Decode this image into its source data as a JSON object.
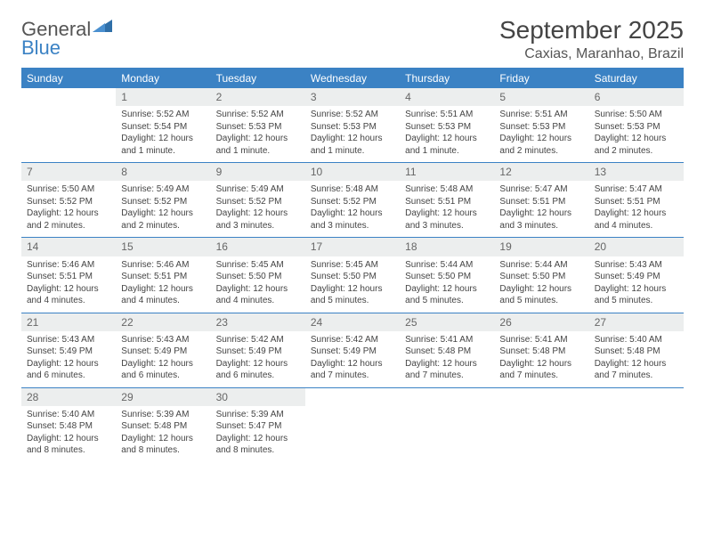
{
  "brand": {
    "word1": "General",
    "word2": "Blue"
  },
  "title": "September 2025",
  "location": "Caxias, Maranhao, Brazil",
  "colors": {
    "header_bg": "#3b82c4",
    "header_text": "#ffffff",
    "daynum_bg": "#eceeee",
    "text": "#444444",
    "rule": "#3b82c4",
    "background": "#ffffff"
  },
  "days_of_week": [
    "Sunday",
    "Monday",
    "Tuesday",
    "Wednesday",
    "Thursday",
    "Friday",
    "Saturday"
  ],
  "start_weekday_index": 1,
  "days": [
    {
      "n": 1,
      "sunrise": "5:52 AM",
      "sunset": "5:54 PM",
      "daylight": "12 hours and 1 minute."
    },
    {
      "n": 2,
      "sunrise": "5:52 AM",
      "sunset": "5:53 PM",
      "daylight": "12 hours and 1 minute."
    },
    {
      "n": 3,
      "sunrise": "5:52 AM",
      "sunset": "5:53 PM",
      "daylight": "12 hours and 1 minute."
    },
    {
      "n": 4,
      "sunrise": "5:51 AM",
      "sunset": "5:53 PM",
      "daylight": "12 hours and 1 minute."
    },
    {
      "n": 5,
      "sunrise": "5:51 AM",
      "sunset": "5:53 PM",
      "daylight": "12 hours and 2 minutes."
    },
    {
      "n": 6,
      "sunrise": "5:50 AM",
      "sunset": "5:53 PM",
      "daylight": "12 hours and 2 minutes."
    },
    {
      "n": 7,
      "sunrise": "5:50 AM",
      "sunset": "5:52 PM",
      "daylight": "12 hours and 2 minutes."
    },
    {
      "n": 8,
      "sunrise": "5:49 AM",
      "sunset": "5:52 PM",
      "daylight": "12 hours and 2 minutes."
    },
    {
      "n": 9,
      "sunrise": "5:49 AM",
      "sunset": "5:52 PM",
      "daylight": "12 hours and 3 minutes."
    },
    {
      "n": 10,
      "sunrise": "5:48 AM",
      "sunset": "5:52 PM",
      "daylight": "12 hours and 3 minutes."
    },
    {
      "n": 11,
      "sunrise": "5:48 AM",
      "sunset": "5:51 PM",
      "daylight": "12 hours and 3 minutes."
    },
    {
      "n": 12,
      "sunrise": "5:47 AM",
      "sunset": "5:51 PM",
      "daylight": "12 hours and 3 minutes."
    },
    {
      "n": 13,
      "sunrise": "5:47 AM",
      "sunset": "5:51 PM",
      "daylight": "12 hours and 4 minutes."
    },
    {
      "n": 14,
      "sunrise": "5:46 AM",
      "sunset": "5:51 PM",
      "daylight": "12 hours and 4 minutes."
    },
    {
      "n": 15,
      "sunrise": "5:46 AM",
      "sunset": "5:51 PM",
      "daylight": "12 hours and 4 minutes."
    },
    {
      "n": 16,
      "sunrise": "5:45 AM",
      "sunset": "5:50 PM",
      "daylight": "12 hours and 4 minutes."
    },
    {
      "n": 17,
      "sunrise": "5:45 AM",
      "sunset": "5:50 PM",
      "daylight": "12 hours and 5 minutes."
    },
    {
      "n": 18,
      "sunrise": "5:44 AM",
      "sunset": "5:50 PM",
      "daylight": "12 hours and 5 minutes."
    },
    {
      "n": 19,
      "sunrise": "5:44 AM",
      "sunset": "5:50 PM",
      "daylight": "12 hours and 5 minutes."
    },
    {
      "n": 20,
      "sunrise": "5:43 AM",
      "sunset": "5:49 PM",
      "daylight": "12 hours and 5 minutes."
    },
    {
      "n": 21,
      "sunrise": "5:43 AM",
      "sunset": "5:49 PM",
      "daylight": "12 hours and 6 minutes."
    },
    {
      "n": 22,
      "sunrise": "5:43 AM",
      "sunset": "5:49 PM",
      "daylight": "12 hours and 6 minutes."
    },
    {
      "n": 23,
      "sunrise": "5:42 AM",
      "sunset": "5:49 PM",
      "daylight": "12 hours and 6 minutes."
    },
    {
      "n": 24,
      "sunrise": "5:42 AM",
      "sunset": "5:49 PM",
      "daylight": "12 hours and 7 minutes."
    },
    {
      "n": 25,
      "sunrise": "5:41 AM",
      "sunset": "5:48 PM",
      "daylight": "12 hours and 7 minutes."
    },
    {
      "n": 26,
      "sunrise": "5:41 AM",
      "sunset": "5:48 PM",
      "daylight": "12 hours and 7 minutes."
    },
    {
      "n": 27,
      "sunrise": "5:40 AM",
      "sunset": "5:48 PM",
      "daylight": "12 hours and 7 minutes."
    },
    {
      "n": 28,
      "sunrise": "5:40 AM",
      "sunset": "5:48 PM",
      "daylight": "12 hours and 8 minutes."
    },
    {
      "n": 29,
      "sunrise": "5:39 AM",
      "sunset": "5:48 PM",
      "daylight": "12 hours and 8 minutes."
    },
    {
      "n": 30,
      "sunrise": "5:39 AM",
      "sunset": "5:47 PM",
      "daylight": "12 hours and 8 minutes."
    }
  ],
  "labels": {
    "sunrise": "Sunrise:",
    "sunset": "Sunset:",
    "daylight": "Daylight:"
  }
}
